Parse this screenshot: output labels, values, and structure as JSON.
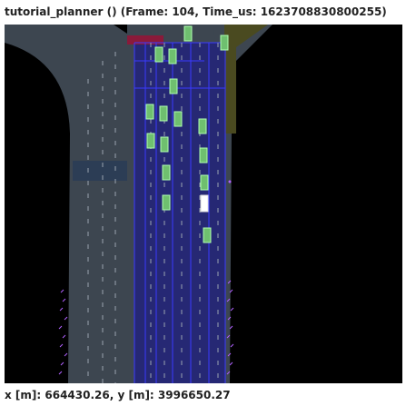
{
  "window": {
    "title": "tutorial_planner () (Frame: 104, Time_us: 1623708830800255)"
  },
  "status": {
    "coordinates": "x [m]: 664430.26, y [m]: 3996650.27"
  },
  "scene": {
    "colors": {
      "background": "#000000",
      "road": "#3d4650",
      "lane_highlight": "#1f1f80",
      "lane_border": "#3a3aff",
      "vehicle": "#6fbf6f",
      "vehicle_border": "#b0ffb0",
      "ego_vehicle": "#ffffff",
      "side_road": "#4a4a20",
      "traffic_light_zone": "#8a1a3a",
      "trajectory_points": "#b060ff"
    }
  }
}
